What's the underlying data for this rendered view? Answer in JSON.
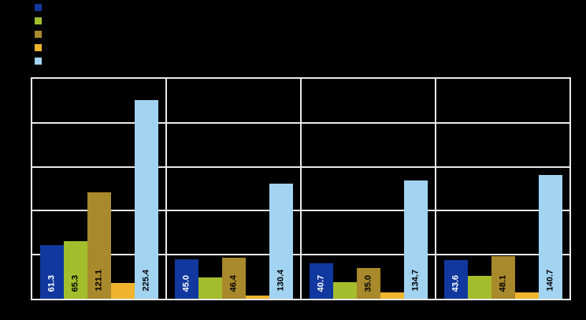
{
  "canvas": {
    "background": "#000000"
  },
  "legend": {
    "position": "top-left",
    "items": [
      {
        "color": "#11389E",
        "label": ""
      },
      {
        "color": "#A4BD2C",
        "label": ""
      },
      {
        "color": "#A8892B",
        "label": ""
      },
      {
        "color": "#F0B42E",
        "label": ""
      },
      {
        "color": "#A2D4F2",
        "label": ""
      }
    ]
  },
  "chart_data": {
    "type": "bar",
    "title": "",
    "categories": [
      "",
      "",
      "",
      ""
    ],
    "x_tick_labels_visible": false,
    "y_tick_labels_visible": false,
    "ylim": [
      0,
      250
    ],
    "gridline_values": [
      50,
      100,
      150,
      200
    ],
    "grid_on": true,
    "grid_color": "#E9E9E9",
    "plot_bg": "#000000",
    "group_dividers": true,
    "bar_label_rotation": 90,
    "series": [
      {
        "legend_label": "",
        "color": "#11389E",
        "label_text_color": "#FFFFFF",
        "values": [
          61.3,
          45.0,
          40.7,
          43.6
        ],
        "bar_labels": [
          "61.3",
          "45.0",
          "40.7",
          "43.6"
        ]
      },
      {
        "legend_label": "",
        "color": "#A4BD2C",
        "label_text_color": "#000000",
        "values": [
          65.3,
          24,
          19,
          26
        ],
        "bar_labels": [
          "65.3",
          null,
          null,
          null
        ]
      },
      {
        "legend_label": "",
        "color": "#A8892B",
        "label_text_color": "#000000",
        "values": [
          121.1,
          46.4,
          35.0,
          48.1
        ],
        "bar_labels": [
          "121.1",
          "46.4",
          "35.0",
          "48.1"
        ]
      },
      {
        "legend_label": "",
        "color": "#F0B42E",
        "label_text_color": "#000000",
        "values": [
          18,
          4,
          7,
          7
        ],
        "bar_labels": [
          null,
          null,
          null,
          null
        ]
      },
      {
        "legend_label": "",
        "color": "#A2D4F2",
        "label_text_color": "#000000",
        "values": [
          225.4,
          130.4,
          134.7,
          140.7
        ],
        "bar_labels": [
          "225.4",
          "130.4",
          "134.7",
          "140.7"
        ]
      }
    ]
  }
}
